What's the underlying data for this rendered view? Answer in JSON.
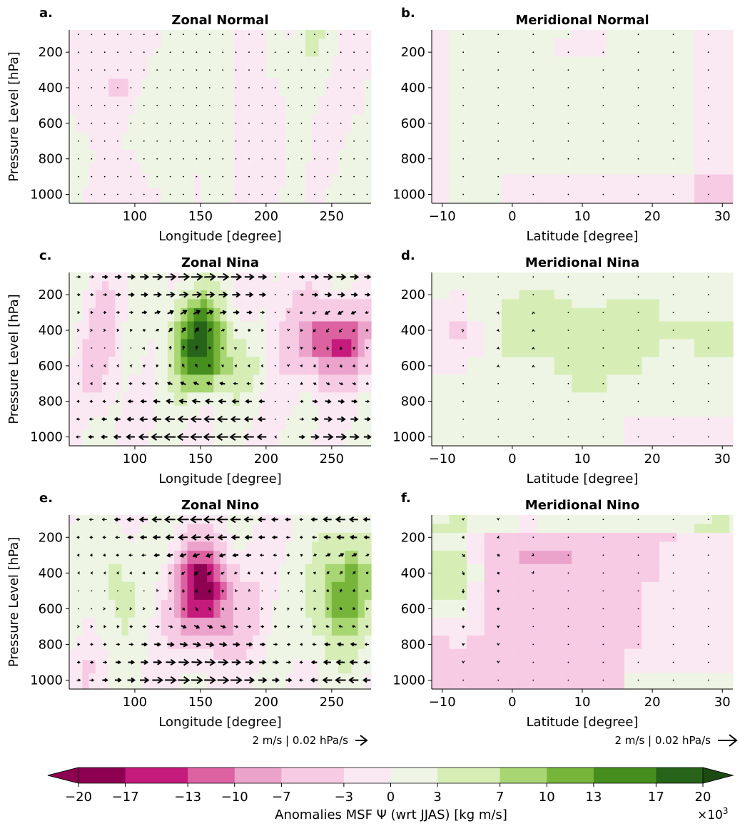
{
  "figure": {
    "colorbar": {
      "label": "Anomalies MSF Ψ (wrt JJAS) [kg m/s]",
      "multiplier": "×10",
      "multiplier_exp": "3",
      "boundaries": [
        -20,
        -17,
        -13,
        -10,
        -7,
        -3,
        0,
        3,
        7,
        10,
        13,
        17,
        20
      ],
      "tick_labels": [
        "−20",
        "−17",
        "−13",
        "−10",
        "−7",
        "−3",
        "0",
        "3",
        "7",
        "10",
        "13",
        "17",
        "20"
      ],
      "colors": [
        "#8e0152",
        "#c51b7d",
        "#de77ae",
        "#f1b6da",
        "#fde0ef",
        "#f7f7f7",
        "#e6f5d0",
        "#b8e186",
        "#7fbc41",
        "#4d9221",
        "#276419",
        "#1b4a12"
      ],
      "bin_colors": [
        "#8e0152",
        "#c51b7d",
        "#dc62a1",
        "#eba3cc",
        "#f7cbe4",
        "#fae9f3",
        "#eef5e4",
        "#d6edb6",
        "#a8d672",
        "#76b53a",
        "#468f1f",
        "#27641a"
      ]
    },
    "quiver_keys": [
      {
        "panel": "e",
        "label": "2 m/s | 0.02 hPa/s"
      },
      {
        "panel": "f",
        "label": "2 m/s | 0.02 hPa/s"
      }
    ]
  },
  "chart_data": [
    {
      "id": "a",
      "letter": "a.",
      "type": "heatmap",
      "title": "Zonal Normal",
      "xlabel": "Longitude [degree]",
      "ylabel": "Pressure Level [hPa]",
      "xlim": [
        50,
        280
      ],
      "ylim": [
        1050,
        75
      ],
      "xticks": [
        100,
        150,
        200,
        250
      ],
      "xtick_labels": [
        "100",
        "150",
        "200",
        "250"
      ],
      "yticks": [
        200,
        400,
        600,
        800,
        1000
      ],
      "ytick_labels": [
        "200",
        "400",
        "600",
        "800",
        "1000"
      ],
      "x_step": 5,
      "levels": [
        100,
        150,
        200,
        250,
        300,
        400,
        500,
        600,
        700,
        800,
        850,
        925,
        1000
      ],
      "field": "normal",
      "vectors": "none",
      "vector_scale": 0,
      "show_xlabel": true
    },
    {
      "id": "b",
      "letter": "b.",
      "type": "heatmap",
      "title": "Meridional Normal",
      "xlabel": "Latitude [degree]",
      "ylabel": "",
      "xlim": [
        -11.5,
        31.5
      ],
      "ylim": [
        1050,
        75
      ],
      "xticks": [
        -10,
        0,
        10,
        20,
        30
      ],
      "xtick_labels": [
        "−10",
        "0",
        "10",
        "20",
        "30"
      ],
      "yticks": [
        200,
        400,
        600,
        800,
        1000
      ],
      "ytick_labels": [
        "200",
        "400",
        "600",
        "800",
        "1000"
      ],
      "x_step": 2.5,
      "levels": [
        100,
        150,
        200,
        250,
        300,
        400,
        500,
        600,
        700,
        800,
        850,
        925,
        1000
      ],
      "field": "mer_normal",
      "vectors": "tiny",
      "vector_scale": 0.3,
      "show_xlabel": true
    },
    {
      "id": "c",
      "letter": "c.",
      "type": "heatmap",
      "title": "Zonal Nina",
      "xlabel": "Longitude [degree]",
      "ylabel": "Pressure Level [hPa]",
      "xlim": [
        50,
        280
      ],
      "ylim": [
        1050,
        75
      ],
      "xticks": [
        100,
        150,
        200,
        250
      ],
      "xtick_labels": [
        "100",
        "150",
        "200",
        "250"
      ],
      "yticks": [
        200,
        400,
        600,
        800,
        1000
      ],
      "ytick_labels": [
        "200",
        "400",
        "600",
        "800",
        "1000"
      ],
      "x_step": 5,
      "levels": [
        100,
        150,
        200,
        250,
        300,
        400,
        500,
        600,
        700,
        800,
        850,
        925,
        1000
      ],
      "field": "nina_zonal",
      "vectors": "nina_zonal",
      "vector_scale": 1.0,
      "show_xlabel": true
    },
    {
      "id": "d",
      "letter": "d.",
      "type": "heatmap",
      "title": "Meridional Nina",
      "xlabel": "Latitude [degree]",
      "ylabel": "",
      "xlim": [
        -11.5,
        31.5
      ],
      "ylim": [
        1050,
        75
      ],
      "xticks": [
        -10,
        0,
        10,
        20,
        30
      ],
      "xtick_labels": [
        "−10",
        "0",
        "10",
        "20",
        "30"
      ],
      "yticks": [
        200,
        400,
        600,
        800,
        1000
      ],
      "ytick_labels": [
        "200",
        "400",
        "600",
        "800",
        "1000"
      ],
      "x_step": 2.5,
      "levels": [
        100,
        150,
        200,
        250,
        300,
        400,
        500,
        600,
        700,
        800,
        850,
        925,
        1000
      ],
      "field": "mer_nina",
      "vectors": "mer_nina",
      "vector_scale": 0.5,
      "show_xlabel": true
    },
    {
      "id": "e",
      "letter": "e.",
      "type": "heatmap",
      "title": "Zonal Nino",
      "xlabel": "Longitude [degree]",
      "ylabel": "Pressure Level [hPa]",
      "xlim": [
        50,
        280
      ],
      "ylim": [
        1050,
        75
      ],
      "xticks": [
        100,
        150,
        200,
        250
      ],
      "xtick_labels": [
        "100",
        "150",
        "200",
        "250"
      ],
      "yticks": [
        200,
        400,
        600,
        800,
        1000
      ],
      "ytick_labels": [
        "200",
        "400",
        "600",
        "800",
        "1000"
      ],
      "x_step": 5,
      "levels": [
        100,
        150,
        200,
        250,
        300,
        400,
        500,
        600,
        700,
        800,
        850,
        925,
        1000
      ],
      "field": "nino_zonal",
      "vectors": "nino_zonal",
      "vector_scale": 1.0,
      "show_xlabel": true
    },
    {
      "id": "f",
      "letter": "f.",
      "type": "heatmap",
      "title": "Meridional Nino",
      "xlabel": "Latitude [degree]",
      "ylabel": "",
      "xlim": [
        -11.5,
        31.5
      ],
      "ylim": [
        1050,
        75
      ],
      "xticks": [
        -10,
        0,
        10,
        20,
        30
      ],
      "xtick_labels": [
        "−10",
        "0",
        "10",
        "20",
        "30"
      ],
      "yticks": [
        200,
        400,
        600,
        800,
        1000
      ],
      "ytick_labels": [
        "200",
        "400",
        "600",
        "800",
        "1000"
      ],
      "x_step": 2.5,
      "levels": [
        100,
        150,
        200,
        250,
        300,
        400,
        500,
        600,
        700,
        800,
        850,
        925,
        1000
      ],
      "field": "mer_nino",
      "vectors": "mer_nino",
      "vector_scale": 0.8,
      "show_xlabel": true
    }
  ]
}
